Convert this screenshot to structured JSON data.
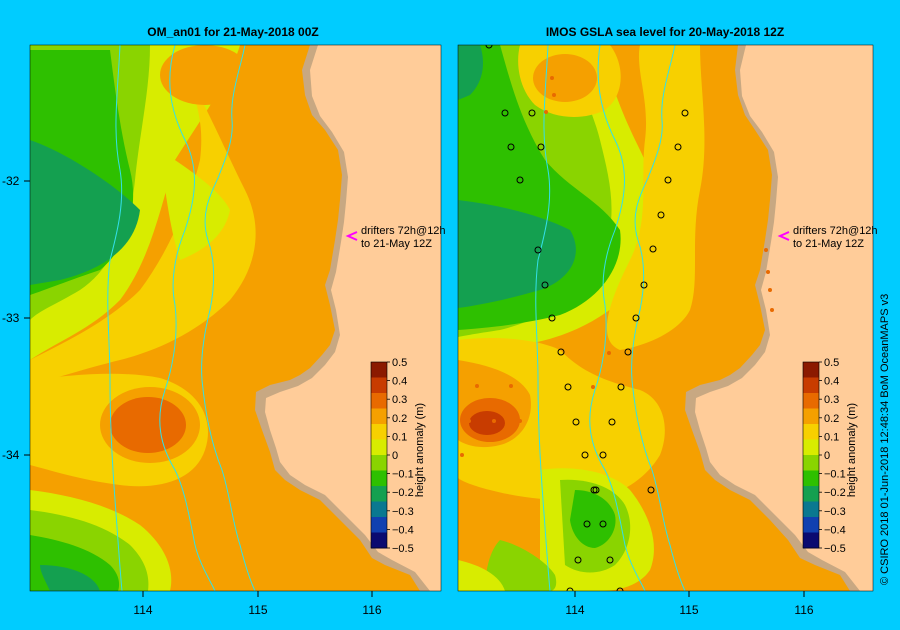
{
  "left_panel": {
    "title": "OM_an01  for 21-May-2018 00Z",
    "drifter_note_line1": "drifters 72h@12h",
    "drifter_note_line2": "to 21-May 12Z"
  },
  "right_panel": {
    "title": "IMOS  GSLA sea level   for 20-May-2018 12Z",
    "drifter_note_line1": "drifters 72h@12h",
    "drifter_note_line2": "to 21-May 12Z"
  },
  "lat_ticks": [
    "-32",
    "-33",
    "-34"
  ],
  "lon_ticks": [
    "114",
    "115",
    "116"
  ],
  "colorbar": {
    "label": "height anomaly  (m)",
    "ticks": [
      "0.5",
      "0.4",
      "0.3",
      "0.2",
      "0.1",
      "0",
      "−0.1",
      "−0.2",
      "−0.3",
      "−0.4",
      "−0.5"
    ],
    "colors": [
      "#8b1a00",
      "#c83c00",
      "#e86a00",
      "#f5a000",
      "#f7d000",
      "#d8ec00",
      "#8ad400",
      "#2ec000",
      "#14a050",
      "#0a7890",
      "#1040b0",
      "#0a0a70"
    ]
  },
  "credit": "© CSIRO 2018   01-Jun-2018 12:48:34 BoM OceanMAPS v3",
  "colors": {
    "background": "#00ccff",
    "land": "#ffcc99",
    "shelf": "#c8a882",
    "drifter_arrow": "#ff00ff"
  }
}
